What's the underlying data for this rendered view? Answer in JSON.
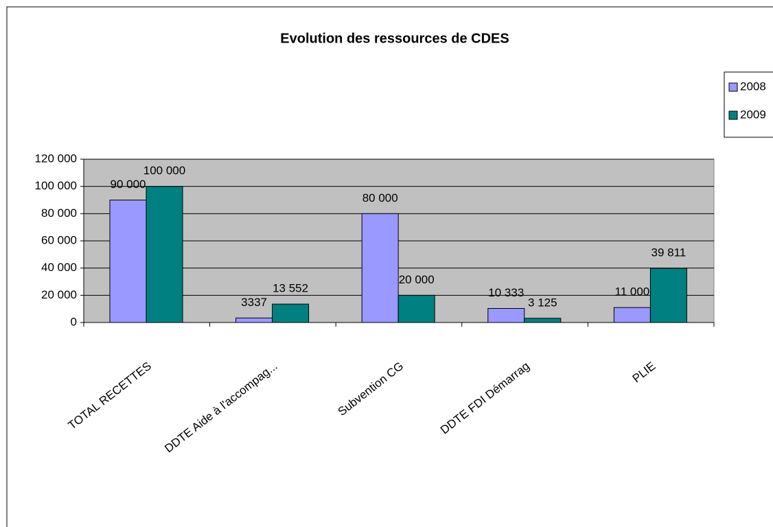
{
  "chart_data": {
    "type": "bar",
    "title": "Evolution des ressources de CDES",
    "categories": [
      "TOTAL RECETTES",
      "DDTE Aide à l'accompag...",
      "Subvention CG",
      "DDTE FDI Démarrag",
      "PLIE"
    ],
    "series": [
      {
        "name": "2008",
        "color": "#9999ff",
        "values": [
          90000,
          3337,
          80000,
          10333,
          11000
        ],
        "value_labels": [
          "90 000",
          "3337",
          "80 000",
          "10 333",
          "11 000"
        ]
      },
      {
        "name": "2009",
        "color": "#008080",
        "values": [
          100000,
          13552,
          20000,
          3125,
          39811
        ],
        "value_labels": [
          "100 000",
          "13 552",
          "20 000",
          "3 125",
          "39 811"
        ]
      }
    ],
    "ylim": [
      0,
      120000
    ],
    "yticks": [
      0,
      {
        "value": 20000,
        "label": "20 000"
      },
      {
        "value": 40000,
        "label": "40 000"
      },
      {
        "value": 60000,
        "label": "60 000"
      },
      {
        "value": 80000,
        "label": "80 000"
      },
      {
        "value": 100000,
        "label": "100 000"
      },
      {
        "value": 120000,
        "label": "120 000"
      }
    ],
    "grid": true,
    "legend": "right",
    "plot_background": "#c0c0c0"
  }
}
